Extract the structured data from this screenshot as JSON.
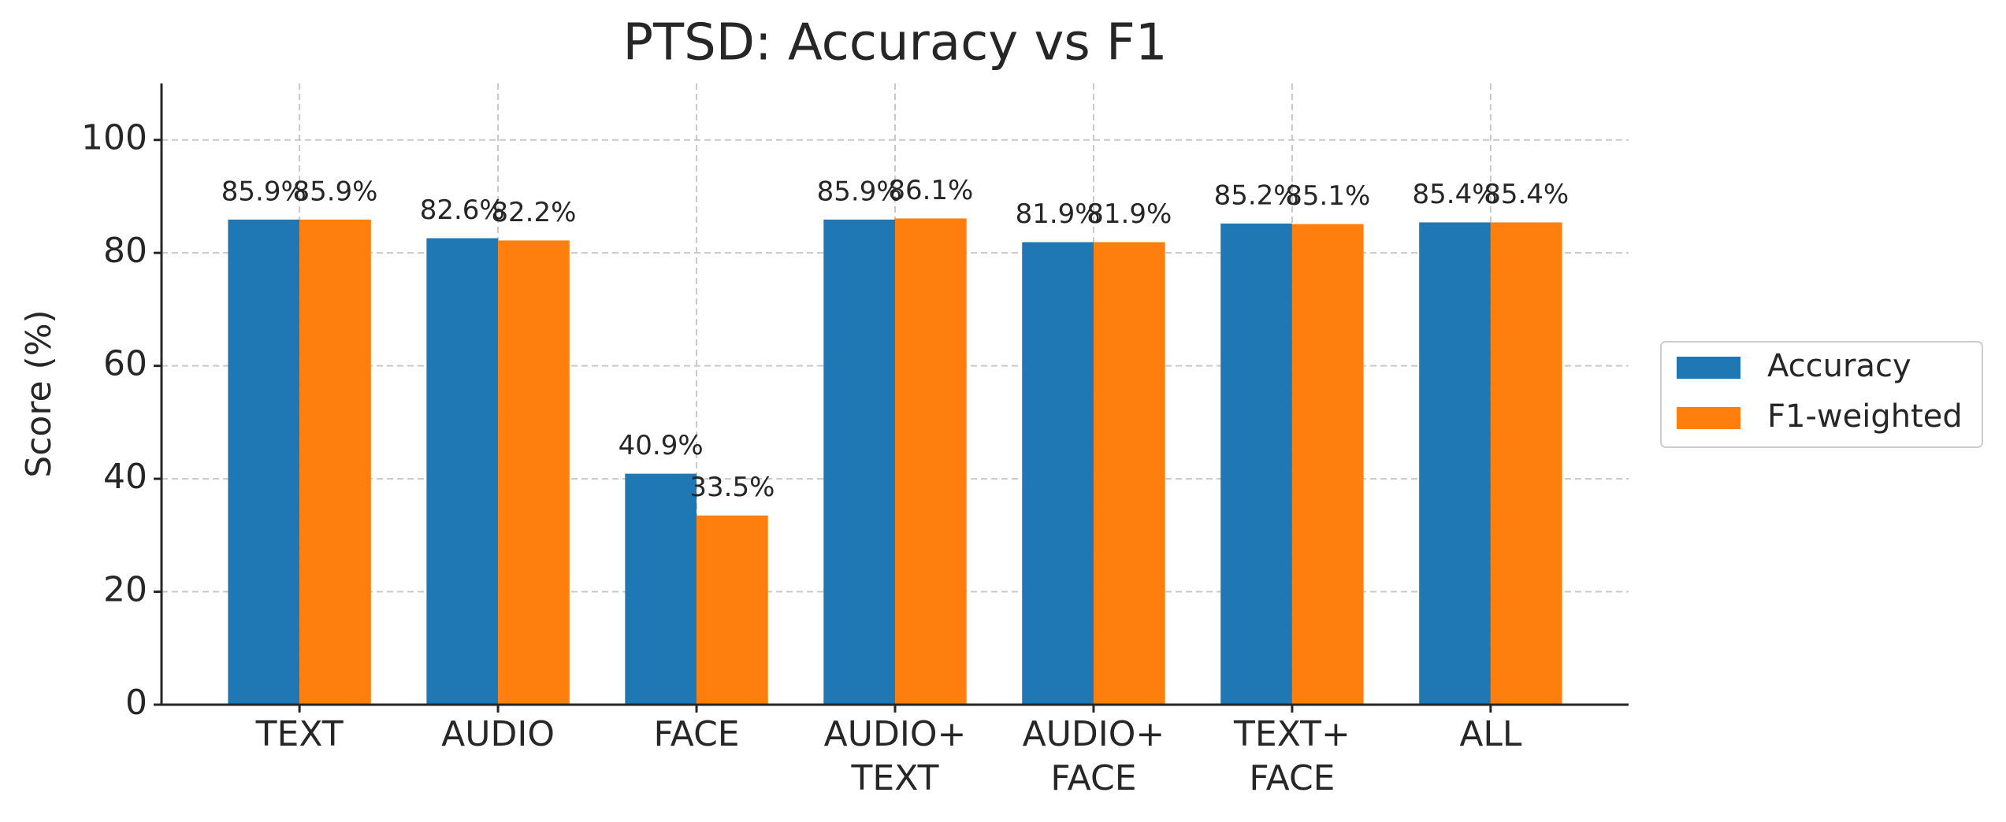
{
  "chart_data": {
    "type": "bar",
    "title": "PTSD: Accuracy vs F1",
    "y_label": "Score (%)",
    "categories": [
      "TEXT",
      "AUDIO",
      "FACE",
      "AUDIO+\nTEXT",
      "AUDIO+\nFACE",
      "TEXT+\nFACE",
      "ALL"
    ],
    "series": [
      {
        "name": "Accuracy",
        "color": "#1f77b4",
        "values": [
          85.9,
          82.6,
          40.9,
          85.9,
          81.9,
          85.2,
          85.4
        ],
        "value_labels": [
          "85.9%",
          "82.6%",
          "40.9%",
          "85.9%",
          "81.9%",
          "85.2%",
          "85.4%"
        ]
      },
      {
        "name": "F1-weighted",
        "color": "#ff7f0e",
        "values": [
          85.9,
          82.2,
          33.5,
          86.1,
          81.9,
          85.1,
          85.4
        ],
        "value_labels": [
          "85.9%",
          "82.2%",
          "33.5%",
          "86.1%",
          "81.9%",
          "85.1%",
          "85.4%"
        ]
      }
    ],
    "ylim": [
      0,
      110
    ],
    "yticks": [
      0,
      20,
      40,
      60,
      80,
      100
    ],
    "grid": true,
    "legend": "right"
  }
}
